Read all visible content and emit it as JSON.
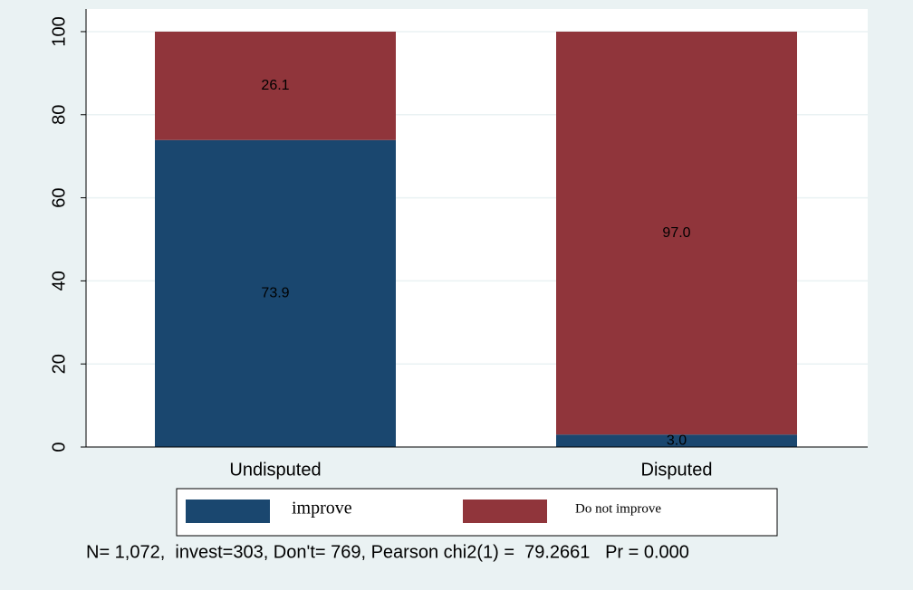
{
  "chart_data": {
    "type": "stacked_bar",
    "categories": [
      "Undisputed",
      "Disputed"
    ],
    "series": [
      {
        "name": "improve",
        "color": "#1a476f",
        "values": [
          73.9,
          3.0
        ],
        "value_labels": [
          "73.9",
          "3.0"
        ]
      },
      {
        "name": "Do not improve",
        "color": "#90353b",
        "values": [
          26.1,
          97.0
        ],
        "value_labels": [
          "26.1",
          "97.0"
        ]
      }
    ],
    "ylim": [
      0,
      105
    ],
    "yticks": [
      0,
      20,
      40,
      60,
      80,
      100
    ],
    "grid": true,
    "legend": "bottom",
    "note": "N= 1,072,  invest=303, Don't= 769, Pearson chi2(1) =  79.2661   Pr = 0.000"
  }
}
